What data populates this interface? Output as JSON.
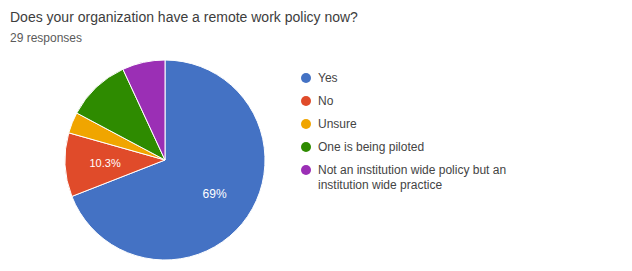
{
  "chart_data": {
    "type": "pie",
    "title": "Does your organization have a remote work policy now?",
    "subtitle": "29 responses",
    "categories": [
      "Yes",
      "No",
      "Unsure",
      "One is being piloted",
      "Not an institution wide policy but an\ninstitution wide practice"
    ],
    "values": [
      69.0,
      10.3,
      3.4,
      10.3,
      6.9
    ],
    "value_labels": [
      "69%",
      "10.3%",
      null,
      null,
      null
    ],
    "colors": [
      "#4472C4",
      "#E04B2A",
      "#F0A500",
      "#2E8B00",
      "#9B2FB5"
    ],
    "legend": "right"
  }
}
